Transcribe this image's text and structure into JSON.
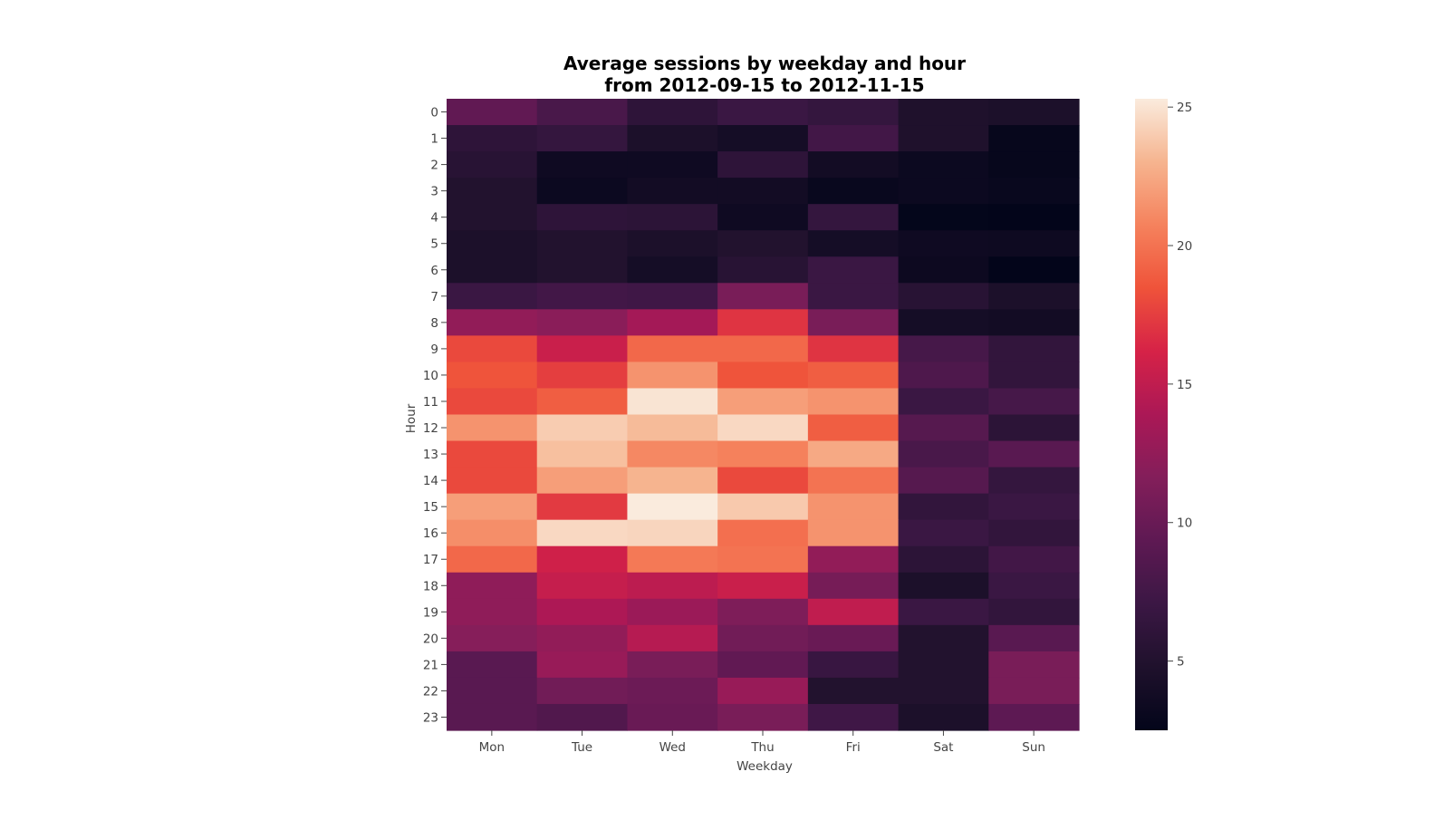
{
  "chart_data": {
    "type": "heatmap",
    "title": "Average sessions by weekday and hour",
    "subtitle": "from 2012-09-15 to 2012-11-15",
    "xlabel": "Weekday",
    "ylabel": "Hour",
    "x_categories": [
      "Mon",
      "Tue",
      "Wed",
      "Thu",
      "Fri",
      "Sat",
      "Sun"
    ],
    "y_categories": [
      "0",
      "1",
      "2",
      "3",
      "4",
      "5",
      "6",
      "7",
      "8",
      "9",
      "10",
      "11",
      "12",
      "13",
      "14",
      "15",
      "16",
      "17",
      "18",
      "19",
      "20",
      "21",
      "22",
      "23"
    ],
    "colormap": "rocket",
    "colorbar": {
      "min": 2.5,
      "max": 25.3,
      "ticks": [
        5,
        10,
        15,
        20,
        25
      ]
    },
    "values": [
      [
        9.5,
        8.0,
        6.0,
        7.0,
        6.5,
        4.8,
        4.5
      ],
      [
        6.0,
        6.5,
        4.5,
        4.0,
        7.5,
        4.8,
        2.8
      ],
      [
        5.5,
        3.5,
        3.5,
        6.0,
        3.8,
        3.2,
        2.8
      ],
      [
        5.0,
        3.2,
        3.8,
        3.8,
        3.0,
        3.2,
        3.0
      ],
      [
        5.0,
        6.0,
        5.8,
        3.5,
        6.5,
        2.6,
        2.5
      ],
      [
        4.5,
        5.0,
        4.5,
        5.0,
        4.0,
        3.5,
        3.4
      ],
      [
        4.5,
        5.0,
        4.0,
        5.5,
        7.0,
        3.3,
        2.5
      ],
      [
        7.0,
        7.5,
        7.3,
        11.0,
        7.0,
        5.5,
        4.5
      ],
      [
        12.5,
        12.0,
        13.5,
        17.0,
        11.0,
        4.0,
        3.8
      ],
      [
        18.0,
        15.5,
        19.5,
        19.5,
        17.0,
        7.8,
        6.3
      ],
      [
        18.5,
        17.5,
        21.5,
        18.5,
        19.0,
        8.3,
        6.3
      ],
      [
        18.0,
        19.0,
        25.0,
        22.0,
        21.5,
        7.0,
        7.8
      ],
      [
        21.5,
        24.0,
        23.3,
        24.5,
        19.0,
        8.8,
        5.8
      ],
      [
        18.0,
        23.5,
        21.0,
        20.7,
        22.5,
        8.0,
        9.0
      ],
      [
        18.0,
        22.0,
        23.0,
        18.0,
        20.0,
        8.8,
        6.5
      ],
      [
        22.0,
        17.3,
        25.3,
        23.9,
        21.5,
        6.3,
        7.0
      ],
      [
        21.3,
        24.5,
        24.4,
        19.8,
        21.5,
        7.0,
        6.3
      ],
      [
        19.5,
        15.8,
        20.3,
        20.0,
        12.5,
        5.8,
        7.5
      ],
      [
        12.3,
        15.3,
        14.8,
        15.5,
        10.8,
        4.5,
        7.0
      ],
      [
        12.3,
        14.0,
        13.0,
        11.3,
        15.0,
        7.0,
        6.3
      ],
      [
        11.8,
        12.5,
        14.5,
        10.5,
        10.0,
        5.0,
        9.0
      ],
      [
        9.0,
        12.8,
        11.0,
        9.5,
        6.8,
        5.0,
        11.0
      ],
      [
        9.0,
        10.5,
        10.2,
        12.8,
        5.0,
        5.0,
        11.0
      ],
      [
        9.0,
        8.5,
        10.0,
        11.0,
        7.3,
        4.5,
        9.3
      ]
    ]
  }
}
